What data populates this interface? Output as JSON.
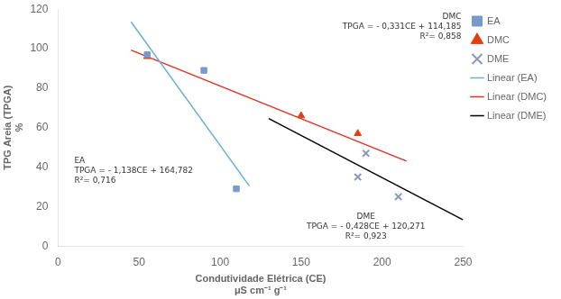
{
  "chart_data": {
    "type": "scatter",
    "xlabel": [
      "Condutividade Elétrica (CE)",
      "μS cm⁻¹ g⁻¹"
    ],
    "ylabel": [
      "TPG Areia (TPGA)",
      "%"
    ],
    "series": [
      {
        "name": "EA",
        "type": "scatter",
        "marker": "square",
        "color": "#7799cc",
        "x": [
          55,
          90,
          110
        ],
        "values": [
          97,
          89,
          29
        ]
      },
      {
        "name": "DMC",
        "type": "scatter",
        "marker": "triangle",
        "color": "#e04010",
        "x": [
          55,
          150,
          185
        ],
        "values": [
          96,
          66,
          57
        ]
      },
      {
        "name": "DME",
        "type": "scatter",
        "marker": "x",
        "color": "#8899bb",
        "x": [
          185,
          190,
          210
        ],
        "values": [
          35,
          47,
          25
        ]
      },
      {
        "name": "Linear (EA)",
        "type": "line",
        "color": "#6baed6",
        "x": [
          45,
          118
        ],
        "values": [
          113.572,
          30.498
        ]
      },
      {
        "name": "Linear (DMC)",
        "type": "line",
        "color": "#e03020",
        "x": [
          45,
          215
        ],
        "values": [
          99.29,
          43.02
        ]
      },
      {
        "name": "Linear (DME)",
        "type": "line",
        "color": "#000000",
        "x": [
          130,
          250
        ],
        "values": [
          64.631,
          13.271
        ]
      }
    ],
    "annotations": [
      {
        "text": [
          "EA",
          "TPGA = - 1,138CE + 164,782",
          "R²= 0,716"
        ]
      },
      {
        "text": [
          "DMC",
          "TPGA = - 0,331CE + 114,185",
          "R²= 0,858"
        ]
      },
      {
        "text": [
          "DME",
          "TPGA = - 0,428CE + 120,271",
          "R²= 0,923"
        ]
      }
    ],
    "xlim": [
      0,
      250
    ],
    "ylim": [
      0,
      120
    ],
    "xticks": [
      0,
      50,
      100,
      150,
      200,
      250
    ],
    "yticks": [
      0,
      20,
      40,
      60,
      80,
      100,
      120
    ],
    "grid": false,
    "legend": "right"
  }
}
